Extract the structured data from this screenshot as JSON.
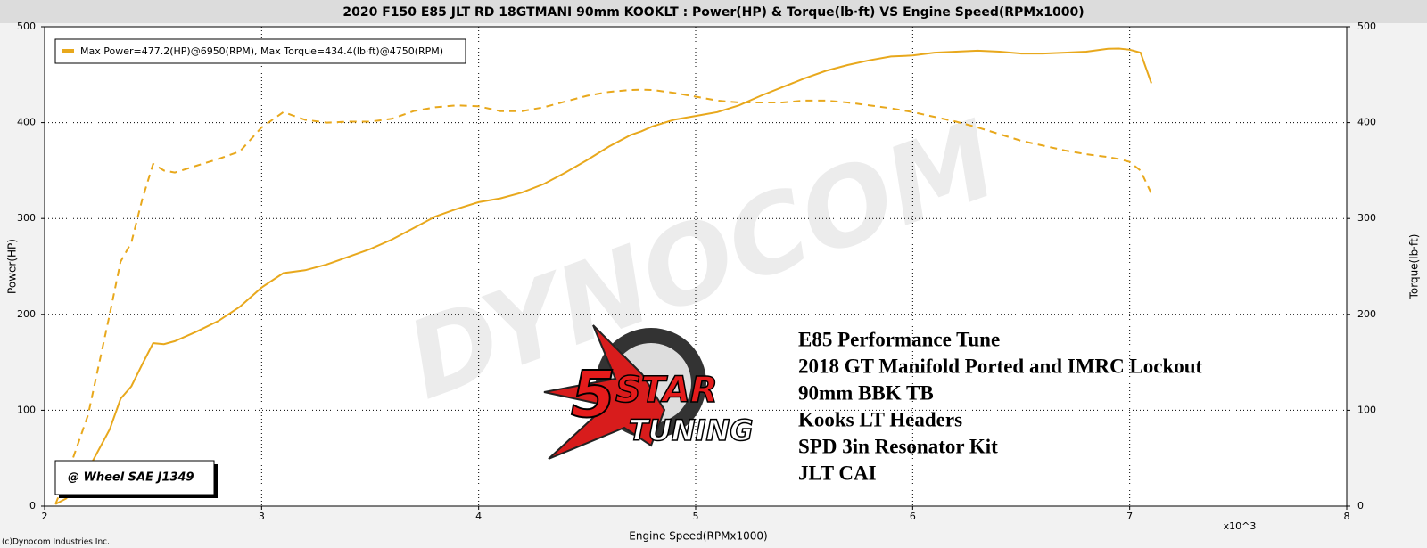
{
  "chart_data": {
    "type": "line",
    "title": "2020 F150 E85 JLT RD 18GTMANI 90mm KOOKLT : Power(HP) & Torque(lb·ft) VS Engine Speed(RPMx1000)",
    "xlabel": "Engine Speed(RPMx1000)",
    "ylabel": "Power(HP)",
    "y2label": "Torque(lb·ft)",
    "x_multiplier": "x10^3",
    "legend_text": "Max Power=477.2(HP)@6950(RPM), Max Torque=434.4(lb·ft)@4750(RPM)",
    "legend": "upper left",
    "grid": true,
    "correction": "@ Wheel SAE J1349",
    "copyright": "(c)Dynocom Industries Inc.",
    "watermark": "DYNOCOM",
    "logo": {
      "number": "5",
      "word1": "STAR",
      "word2": "TUNING"
    },
    "notes": [
      "E85 Performance Tune",
      "2018 GT Manifold Ported and IMRC Lockout",
      "90mm BBK TB",
      "Kooks LT Headers",
      "SPD 3in Resonator Kit",
      "JLT CAI"
    ],
    "xlim": [
      2,
      8
    ],
    "xticks": [
      2,
      3,
      4,
      5,
      6,
      7,
      8
    ],
    "ylim": [
      0,
      500
    ],
    "yticks": [
      0,
      100,
      200,
      300,
      400,
      500
    ],
    "y2lim": [
      0,
      500
    ],
    "y2ticks": [
      0,
      100,
      200,
      300,
      400,
      500
    ],
    "x": [
      2.05,
      2.1,
      2.2,
      2.3,
      2.35,
      2.4,
      2.45,
      2.5,
      2.55,
      2.6,
      2.7,
      2.8,
      2.9,
      3.0,
      3.1,
      3.2,
      3.3,
      3.4,
      3.5,
      3.6,
      3.7,
      3.8,
      3.9,
      4.0,
      4.1,
      4.2,
      4.3,
      4.4,
      4.5,
      4.6,
      4.7,
      4.75,
      4.8,
      4.9,
      5.0,
      5.1,
      5.2,
      5.3,
      5.4,
      5.5,
      5.6,
      5.7,
      5.8,
      5.9,
      6.0,
      6.1,
      6.2,
      6.3,
      6.4,
      6.5,
      6.6,
      6.7,
      6.8,
      6.9,
      6.95,
      7.0,
      7.05,
      7.1
    ],
    "series": [
      {
        "color": "#e8a81c",
        "linestyle": "solid",
        "values": [
          2,
          8,
          38,
          80,
          112,
          125,
          148,
          170,
          169,
          172,
          182,
          193,
          208,
          228,
          243,
          246,
          252,
          260,
          268,
          278,
          290,
          302,
          310,
          317,
          321,
          327,
          336,
          348,
          361,
          375,
          387,
          391,
          396,
          403,
          407,
          411,
          418,
          428,
          437,
          446,
          454,
          460,
          465,
          469,
          470,
          473,
          474,
          475,
          474,
          472,
          472,
          473,
          474,
          477,
          477.2,
          476,
          473,
          441
        ]
      },
      {
        "color": "#e8a81c",
        "linestyle": "dashed",
        "axis": "y2",
        "values": [
          2,
          30,
          95,
          200,
          255,
          275,
          320,
          357,
          350,
          348,
          355,
          362,
          370,
          395,
          411,
          403,
          400,
          401,
          401,
          404,
          412,
          416,
          418,
          417,
          412,
          412,
          416,
          422,
          428,
          432,
          434,
          434.4,
          434,
          431,
          427,
          423,
          421,
          421,
          421,
          423,
          423,
          421,
          418,
          415,
          411,
          406,
          401,
          395,
          388,
          381,
          376,
          371,
          367,
          364,
          362,
          359,
          350,
          326
        ]
      }
    ]
  }
}
